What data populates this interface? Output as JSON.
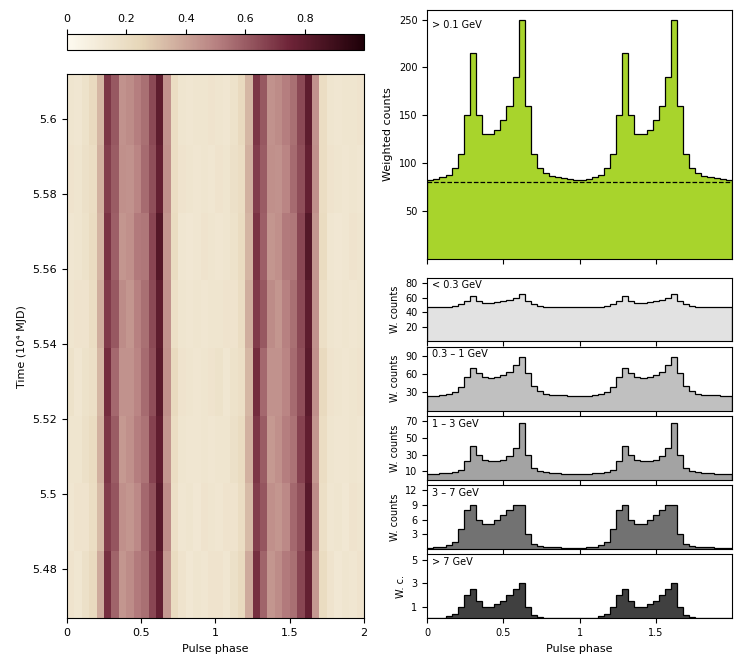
{
  "chart_data": [
    {
      "type": "heatmap",
      "xlabel": "Pulse phase",
      "ylabel": "Time (10⁴ MJD)",
      "xlim": [
        0,
        2
      ],
      "xticks": [
        0,
        0.5,
        1,
        1.5,
        2
      ],
      "ylim": [
        5.467,
        5.612
      ],
      "yticks": [
        5.48,
        5.5,
        5.52,
        5.54,
        5.56,
        5.58,
        5.6
      ],
      "x_edges": [
        0,
        0.05,
        0.1,
        0.15,
        0.2,
        0.25,
        0.3,
        0.35,
        0.4,
        0.45,
        0.5,
        0.55,
        0.6,
        0.65,
        0.7,
        0.75,
        0.8,
        0.85,
        0.9,
        0.95,
        1,
        1.05,
        1.1,
        1.15,
        1.2,
        1.25,
        1.3,
        1.35,
        1.4,
        1.45,
        1.5,
        1.55,
        1.6,
        1.65,
        1.7,
        1.75,
        1.8,
        1.85,
        1.9,
        1.95,
        2
      ],
      "y_edges": [
        5.467,
        5.485,
        5.503,
        5.521,
        5.539,
        5.557,
        5.575,
        5.593,
        5.612
      ],
      "cells": [
        [
          0.16,
          0.14,
          0.18,
          0.22,
          0.38,
          0.72,
          0.58,
          0.44,
          0.47,
          0.52,
          0.55,
          0.66,
          0.78,
          0.43,
          0.21,
          0.16,
          0.13,
          0.15,
          0.14,
          0.16,
          0.16,
          0.14,
          0.18,
          0.22,
          0.38,
          0.72,
          0.58,
          0.44,
          0.47,
          0.52,
          0.55,
          0.66,
          0.78,
          0.43,
          0.21,
          0.16,
          0.13,
          0.15,
          0.14,
          0.16
        ],
        [
          0.14,
          0.16,
          0.16,
          0.2,
          0.33,
          0.68,
          0.62,
          0.46,
          0.44,
          0.48,
          0.57,
          0.63,
          0.82,
          0.47,
          0.19,
          0.14,
          0.15,
          0.13,
          0.16,
          0.15,
          0.14,
          0.16,
          0.16,
          0.2,
          0.33,
          0.68,
          0.62,
          0.46,
          0.44,
          0.48,
          0.57,
          0.63,
          0.82,
          0.47,
          0.19,
          0.14,
          0.15,
          0.13,
          0.16,
          0.15
        ],
        [
          0.15,
          0.15,
          0.18,
          0.21,
          0.36,
          0.7,
          0.6,
          0.43,
          0.46,
          0.51,
          0.54,
          0.67,
          0.79,
          0.44,
          0.2,
          0.15,
          0.14,
          0.14,
          0.15,
          0.14,
          0.15,
          0.15,
          0.18,
          0.21,
          0.36,
          0.7,
          0.6,
          0.43,
          0.46,
          0.51,
          0.54,
          0.67,
          0.79,
          0.44,
          0.2,
          0.15,
          0.14,
          0.14,
          0.15,
          0.14
        ],
        [
          0.17,
          0.14,
          0.17,
          0.19,
          0.34,
          0.73,
          0.57,
          0.45,
          0.45,
          0.49,
          0.56,
          0.64,
          0.81,
          0.46,
          0.22,
          0.16,
          0.15,
          0.14,
          0.15,
          0.16,
          0.17,
          0.14,
          0.17,
          0.19,
          0.34,
          0.73,
          0.57,
          0.45,
          0.45,
          0.49,
          0.56,
          0.64,
          0.81,
          0.46,
          0.22,
          0.16,
          0.15,
          0.14,
          0.15,
          0.16
        ],
        [
          0.15,
          0.16,
          0.16,
          0.2,
          0.37,
          0.69,
          0.61,
          0.47,
          0.44,
          0.5,
          0.55,
          0.65,
          0.8,
          0.45,
          0.19,
          0.15,
          0.14,
          0.15,
          0.14,
          0.15,
          0.15,
          0.16,
          0.16,
          0.2,
          0.37,
          0.69,
          0.61,
          0.47,
          0.44,
          0.5,
          0.55,
          0.65,
          0.8,
          0.45,
          0.19,
          0.15,
          0.14,
          0.15,
          0.14,
          0.15
        ],
        [
          0.14,
          0.15,
          0.17,
          0.21,
          0.35,
          0.71,
          0.59,
          0.44,
          0.46,
          0.52,
          0.53,
          0.66,
          0.83,
          0.44,
          0.21,
          0.14,
          0.13,
          0.14,
          0.16,
          0.15,
          0.14,
          0.15,
          0.17,
          0.21,
          0.35,
          0.71,
          0.59,
          0.44,
          0.46,
          0.52,
          0.53,
          0.66,
          0.83,
          0.44,
          0.21,
          0.14,
          0.13,
          0.14,
          0.16,
          0.15
        ],
        [
          0.16,
          0.15,
          0.18,
          0.2,
          0.36,
          0.68,
          0.6,
          0.46,
          0.45,
          0.49,
          0.56,
          0.64,
          0.78,
          0.46,
          0.2,
          0.16,
          0.15,
          0.14,
          0.15,
          0.14,
          0.16,
          0.15,
          0.18,
          0.2,
          0.36,
          0.68,
          0.6,
          0.46,
          0.45,
          0.49,
          0.56,
          0.64,
          0.78,
          0.46,
          0.2,
          0.16,
          0.15,
          0.14,
          0.15,
          0.14
        ],
        [
          0.15,
          0.14,
          0.17,
          0.22,
          0.34,
          0.7,
          0.61,
          0.45,
          0.47,
          0.51,
          0.55,
          0.65,
          0.8,
          0.45,
          0.2,
          0.15,
          0.14,
          0.15,
          0.15,
          0.16,
          0.15,
          0.14,
          0.17,
          0.22,
          0.34,
          0.7,
          0.61,
          0.45,
          0.47,
          0.51,
          0.55,
          0.65,
          0.8,
          0.45,
          0.2,
          0.15,
          0.14,
          0.15,
          0.15,
          0.16
        ]
      ],
      "colorbar_range": [
        0,
        1
      ],
      "colorbar_ticks": [
        0,
        0.2,
        0.4,
        0.6,
        0.8
      ]
    },
    {
      "type": "histogram",
      "title": "> 0.1 GeV",
      "ylabel": "Weighted counts",
      "color": "#a8d42c",
      "xlim": [
        0,
        2
      ],
      "xticks": [
        0,
        0.5,
        1,
        1.5
      ],
      "ylim": [
        0,
        260
      ],
      "yticks": [
        50,
        100,
        150,
        200,
        250
      ],
      "tick_labels": "y",
      "background": 80,
      "bins": [
        0,
        0.04,
        0.08,
        0.12,
        0.16,
        0.2,
        0.24,
        0.28,
        0.32,
        0.36,
        0.4,
        0.44,
        0.48,
        0.52,
        0.56,
        0.6,
        0.64,
        0.68,
        0.72,
        0.76,
        0.8,
        0.84,
        0.88,
        0.92,
        0.96,
        1,
        1.04,
        1.08,
        1.12,
        1.16,
        1.2,
        1.24,
        1.28,
        1.32,
        1.36,
        1.4,
        1.44,
        1.48,
        1.52,
        1.56,
        1.6,
        1.64,
        1.68,
        1.72,
        1.76,
        1.8,
        1.84,
        1.88,
        1.92,
        1.96,
        2
      ],
      "counts": [
        82,
        83,
        85,
        88,
        95,
        110,
        150,
        215,
        150,
        130,
        130,
        135,
        145,
        160,
        190,
        250,
        160,
        110,
        95,
        90,
        87,
        85,
        84,
        83,
        82,
        82,
        83,
        85,
        88,
        95,
        110,
        150,
        215,
        150,
        130,
        130,
        135,
        145,
        160,
        190,
        250,
        160,
        110,
        95,
        90,
        87,
        85,
        84,
        83,
        82
      ]
    },
    {
      "type": "histogram",
      "title": "< 0.3 GeV",
      "ylabel": "W. counts",
      "color": "#e2e2e2",
      "xlim": [
        0,
        2
      ],
      "xticks": [
        0,
        0.5,
        1,
        1.5
      ],
      "ylim": [
        0,
        88
      ],
      "yticks": [
        20,
        40,
        60,
        80
      ],
      "tick_labels": "y",
      "bins": [
        0,
        0.04,
        0.08,
        0.12,
        0.16,
        0.2,
        0.24,
        0.28,
        0.32,
        0.36,
        0.4,
        0.44,
        0.48,
        0.52,
        0.56,
        0.6,
        0.64,
        0.68,
        0.72,
        0.76,
        0.8,
        0.84,
        0.88,
        0.92,
        0.96,
        1,
        1.04,
        1.08,
        1.12,
        1.16,
        1.2,
        1.24,
        1.28,
        1.32,
        1.36,
        1.4,
        1.44,
        1.48,
        1.52,
        1.56,
        1.6,
        1.64,
        1.68,
        1.72,
        1.76,
        1.8,
        1.84,
        1.88,
        1.92,
        1.96,
        2
      ],
      "counts": [
        47,
        47,
        48,
        48,
        49,
        51,
        55,
        62,
        55,
        53,
        53,
        54,
        55,
        57,
        60,
        65,
        56,
        51,
        49,
        48,
        48,
        47,
        47,
        47,
        47,
        47,
        47,
        48,
        48,
        49,
        51,
        55,
        62,
        55,
        53,
        53,
        54,
        55,
        57,
        60,
        65,
        56,
        51,
        49,
        48,
        48,
        47,
        47,
        47,
        47
      ]
    },
    {
      "type": "histogram",
      "title": "0.3 – 1 GeV",
      "ylabel": "W. counts",
      "color": "#c0c0c0",
      "xlim": [
        0,
        2
      ],
      "xticks": [
        0,
        0.5,
        1,
        1.5
      ],
      "ylim": [
        0,
        105
      ],
      "yticks": [
        30,
        60,
        90
      ],
      "tick_labels": "y",
      "bins": [
        0,
        0.04,
        0.08,
        0.12,
        0.16,
        0.2,
        0.24,
        0.28,
        0.32,
        0.36,
        0.4,
        0.44,
        0.48,
        0.52,
        0.56,
        0.6,
        0.64,
        0.68,
        0.72,
        0.76,
        0.8,
        0.84,
        0.88,
        0.92,
        0.96,
        1,
        1.04,
        1.08,
        1.12,
        1.16,
        1.2,
        1.24,
        1.28,
        1.32,
        1.36,
        1.4,
        1.44,
        1.48,
        1.52,
        1.56,
        1.6,
        1.64,
        1.68,
        1.72,
        1.76,
        1.8,
        1.84,
        1.88,
        1.92,
        1.96,
        2
      ],
      "counts": [
        24,
        24,
        25,
        27,
        30,
        38,
        55,
        70,
        62,
        55,
        53,
        55,
        58,
        64,
        75,
        88,
        62,
        40,
        32,
        28,
        26,
        25,
        25,
        24,
        24,
        24,
        24,
        25,
        27,
        30,
        38,
        55,
        70,
        62,
        55,
        53,
        55,
        58,
        64,
        75,
        88,
        62,
        40,
        32,
        28,
        26,
        25,
        25,
        24,
        24
      ]
    },
    {
      "type": "histogram",
      "title": "1 – 3 GeV",
      "ylabel": "W. counts",
      "color": "#a3a3a3",
      "xlim": [
        0,
        2
      ],
      "xticks": [
        0,
        0.5,
        1,
        1.5
      ],
      "ylim": [
        0,
        76
      ],
      "yticks": [
        10,
        30,
        50,
        70
      ],
      "tick_labels": "y",
      "bins": [
        0,
        0.04,
        0.08,
        0.12,
        0.16,
        0.2,
        0.24,
        0.28,
        0.32,
        0.36,
        0.4,
        0.44,
        0.48,
        0.52,
        0.56,
        0.6,
        0.64,
        0.68,
        0.72,
        0.76,
        0.8,
        0.84,
        0.88,
        0.92,
        0.96,
        1,
        1.04,
        1.08,
        1.12,
        1.16,
        1.2,
        1.24,
        1.28,
        1.32,
        1.36,
        1.4,
        1.44,
        1.48,
        1.52,
        1.56,
        1.6,
        1.64,
        1.68,
        1.72,
        1.76,
        1.8,
        1.84,
        1.88,
        1.92,
        1.96,
        2
      ],
      "counts": [
        7,
        7,
        8,
        8,
        9,
        12,
        22,
        40,
        30,
        24,
        22,
        22,
        24,
        28,
        38,
        68,
        30,
        14,
        10,
        9,
        8,
        8,
        7,
        7,
        7,
        7,
        7,
        8,
        8,
        9,
        12,
        22,
        40,
        30,
        24,
        22,
        22,
        24,
        28,
        38,
        68,
        30,
        14,
        10,
        9,
        8,
        8,
        7,
        7,
        7
      ]
    },
    {
      "type": "histogram",
      "title": "3 – 7 GeV",
      "ylabel": "W. counts",
      "color": "#727272",
      "xlim": [
        0,
        2
      ],
      "xticks": [
        0,
        0.5,
        1,
        1.5
      ],
      "ylim": [
        0,
        13
      ],
      "yticks": [
        3,
        6,
        9,
        12
      ],
      "tick_labels": "y",
      "bins": [
        0,
        0.04,
        0.08,
        0.12,
        0.16,
        0.2,
        0.24,
        0.28,
        0.32,
        0.36,
        0.4,
        0.44,
        0.48,
        0.52,
        0.56,
        0.6,
        0.64,
        0.68,
        0.72,
        0.76,
        0.8,
        0.84,
        0.88,
        0.92,
        0.96,
        1,
        1.04,
        1.08,
        1.12,
        1.16,
        1.2,
        1.24,
        1.28,
        1.32,
        1.36,
        1.4,
        1.44,
        1.48,
        1.52,
        1.56,
        1.6,
        1.64,
        1.68,
        1.72,
        1.76,
        1.8,
        1.84,
        1.88,
        1.92,
        1.96,
        2
      ],
      "counts": [
        0.3,
        0.4,
        0.5,
        0.8,
        1.5,
        4,
        8,
        9,
        6,
        5,
        5,
        6,
        7,
        8,
        9,
        9,
        3,
        1,
        0.6,
        0.5,
        0.4,
        0.4,
        0.3,
        0.3,
        0.3,
        0.3,
        0.4,
        0.5,
        0.8,
        1.5,
        4,
        8,
        9,
        6,
        5,
        5,
        6,
        7,
        8,
        9,
        9,
        3,
        1,
        0.6,
        0.5,
        0.4,
        0.4,
        0.3,
        0.3,
        0.3
      ]
    },
    {
      "type": "histogram",
      "title": "> 7 GeV",
      "ylabel": "W. c.",
      "xlabel": "Pulse phase",
      "color": "#404040",
      "xlim": [
        0,
        2
      ],
      "xticks": [
        0,
        0.5,
        1,
        1.5
      ],
      "ylim": [
        0,
        5.5
      ],
      "yticks": [
        1,
        3,
        5
      ],
      "bins": [
        0,
        0.04,
        0.08,
        0.12,
        0.16,
        0.2,
        0.24,
        0.28,
        0.32,
        0.36,
        0.4,
        0.44,
        0.48,
        0.52,
        0.56,
        0.6,
        0.64,
        0.68,
        0.72,
        0.76,
        0.8,
        0.84,
        0.88,
        0.92,
        0.96,
        1,
        1.04,
        1.08,
        1.12,
        1.16,
        1.2,
        1.24,
        1.28,
        1.32,
        1.36,
        1.4,
        1.44,
        1.48,
        1.52,
        1.56,
        1.6,
        1.64,
        1.68,
        1.72,
        1.76,
        1.8,
        1.84,
        1.88,
        1.92,
        1.96,
        2
      ],
      "counts": [
        0,
        0,
        0,
        0.2,
        0.4,
        1,
        2,
        2.5,
        1.5,
        1,
        1,
        1.2,
        1.5,
        2,
        2.5,
        3,
        1,
        0.3,
        0.1,
        0,
        0,
        0,
        0,
        0,
        0,
        0,
        0,
        0,
        0.2,
        0.4,
        1,
        2,
        2.5,
        1.5,
        1,
        1,
        1.2,
        1.5,
        2,
        2.5,
        3,
        1,
        0.3,
        0.1,
        0,
        0,
        0,
        0,
        0,
        0
      ]
    }
  ]
}
